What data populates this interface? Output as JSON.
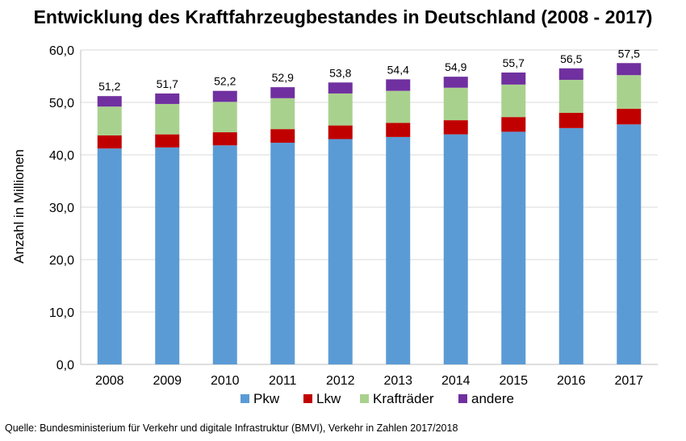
{
  "chart_data": {
    "type": "bar",
    "stacked": true,
    "title": "Entwicklung des Kraftfahrzeugbestandes in Deutschland (2008  - 2017)",
    "xlabel": "",
    "ylabel": "Anzahl in Millionen",
    "ylim": [
      0,
      60
    ],
    "yticks": [
      "0,0",
      "10,0",
      "20,0",
      "30,0",
      "40,0",
      "50,0",
      "60,0"
    ],
    "grid": true,
    "legend_position": "bottom",
    "categories": [
      "2008",
      "2009",
      "2010",
      "2011",
      "2012",
      "2013",
      "2014",
      "2015",
      "2016",
      "2017"
    ],
    "series": [
      {
        "name": "Pkw",
        "color": "#5b9bd5",
        "values": [
          41.2,
          41.4,
          41.8,
          42.3,
          43.0,
          43.4,
          43.9,
          44.4,
          45.1,
          45.8
        ]
      },
      {
        "name": "Lkw",
        "color": "#c00000",
        "values": [
          2.5,
          2.5,
          2.5,
          2.6,
          2.6,
          2.7,
          2.7,
          2.8,
          2.9,
          3.0
        ]
      },
      {
        "name": "Krafträder",
        "color": "#a9d18e",
        "values": [
          5.5,
          5.8,
          5.8,
          5.9,
          6.1,
          6.1,
          6.2,
          6.2,
          6.3,
          6.4
        ]
      },
      {
        "name": "andere",
        "color": "#7030a0",
        "values": [
          2.0,
          2.0,
          2.1,
          2.1,
          2.1,
          2.2,
          2.1,
          2.3,
          2.2,
          2.3
        ]
      }
    ],
    "totals": [
      "51,2",
      "51,7",
      "52,2",
      "52,9",
      "53,8",
      "54,4",
      "54,9",
      "55,7",
      "56,5",
      "57,5"
    ],
    "total_values": [
      51.2,
      51.7,
      52.2,
      52.9,
      53.8,
      54.4,
      54.9,
      55.7,
      56.5,
      57.5
    ]
  },
  "source_note": "Quelle: Bundesministerium für Verkehr und digitale Infrastruktur (BMVI), Verkehr in Zahlen 2017/2018"
}
